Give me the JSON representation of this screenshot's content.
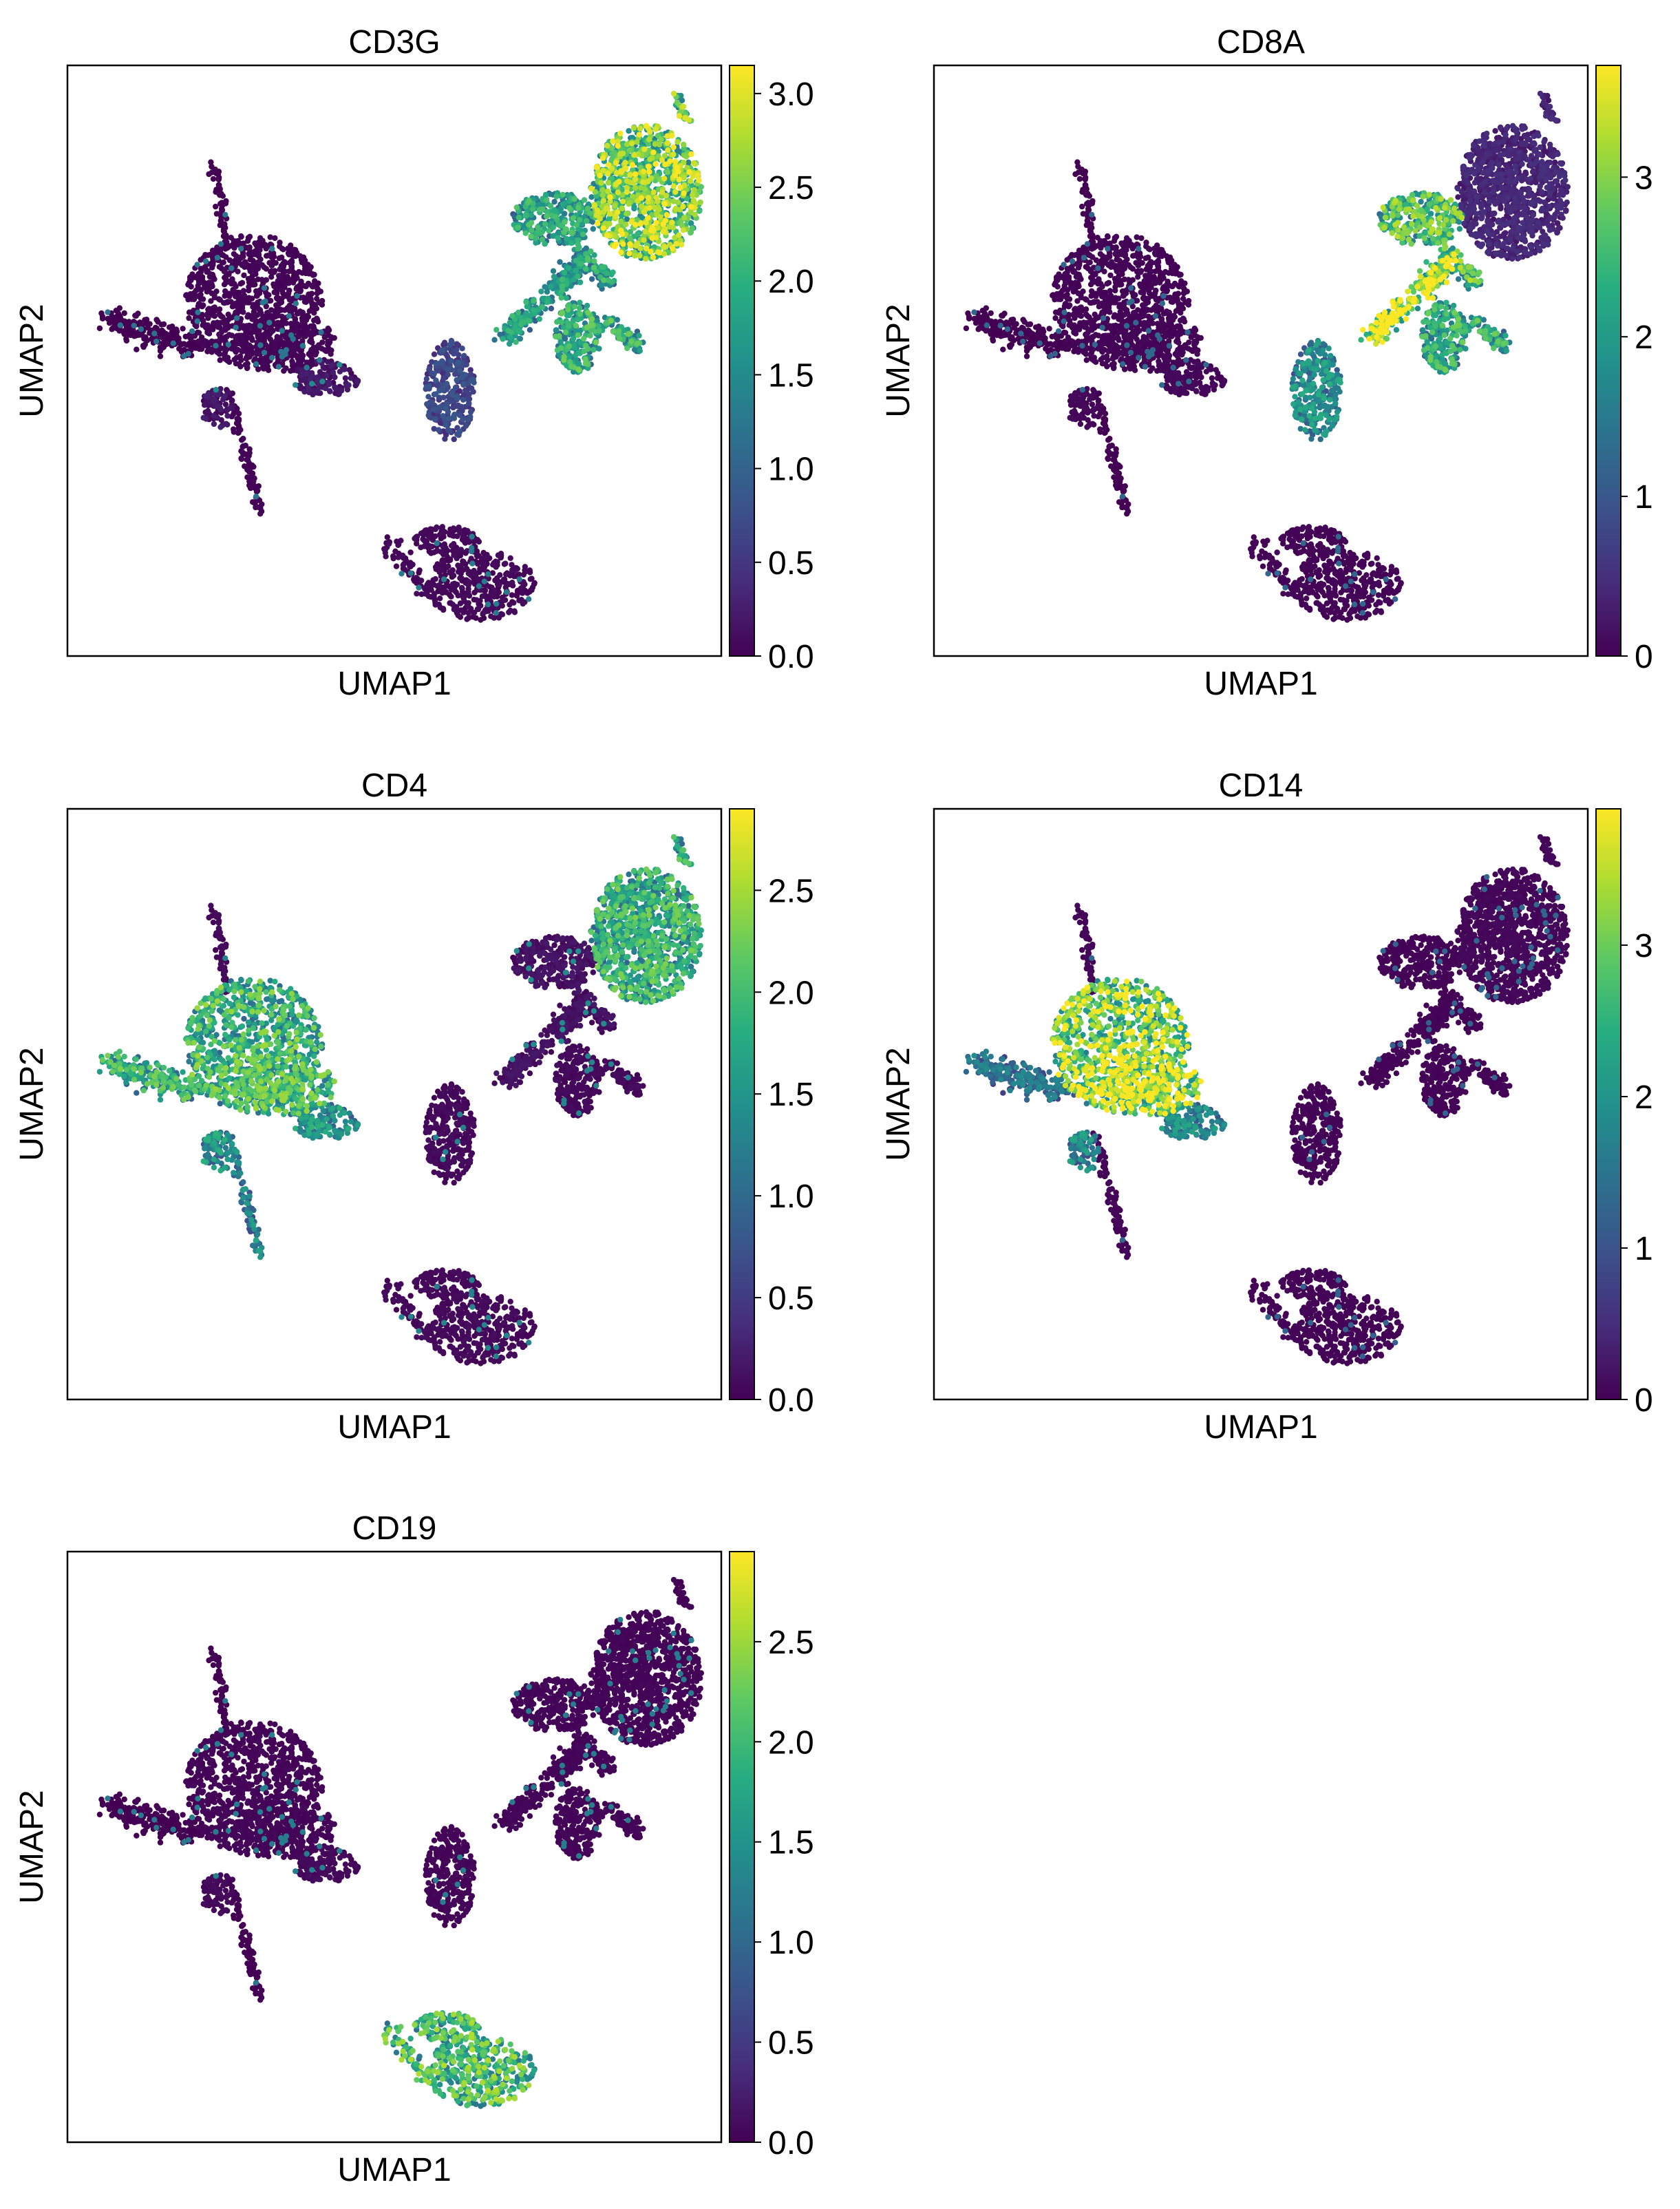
{
  "colormap": {
    "name": "viridis",
    "stops": [
      "#440154",
      "#472d7b",
      "#3b528b",
      "#2c728e",
      "#21918c",
      "#28ae80",
      "#5ec962",
      "#addc30",
      "#fde725"
    ]
  },
  "chart_data": [
    {
      "type": "scatter",
      "title": "CD3G",
      "xlabel": "UMAP1",
      "ylabel": "UMAP2",
      "colorbar": {
        "min": 0.0,
        "max": 3.15,
        "ticks": [
          0.0,
          0.5,
          1.0,
          1.5,
          2.0,
          2.5,
          3.0
        ],
        "tick_labels": [
          "0.0",
          "0.5",
          "1.0",
          "1.5",
          "2.0",
          "2.5",
          "3.0"
        ]
      },
      "cluster_expression": {
        "monocyte_blob": 0.05,
        "monocyte_tail": 0.3,
        "left_arm": 0.0,
        "top_spike": 0.0,
        "bottom_tail": 0.05,
        "t_cell_top": 2.2,
        "t_cell_mid": 1.6,
        "nk_small": 0.6,
        "t_cell_stalk": 1.5,
        "b_cell": 0.1,
        "lower_mid": 1.7
      }
    },
    {
      "type": "scatter",
      "title": "CD8A",
      "xlabel": "UMAP1",
      "ylabel": "UMAP2",
      "colorbar": {
        "min": 0,
        "max": 3.7,
        "ticks": [
          0,
          1,
          2,
          3
        ],
        "tick_labels": [
          "0",
          "1",
          "2",
          "3"
        ]
      },
      "cluster_expression": {
        "monocyte_blob": 0.05,
        "monocyte_tail": 0.1,
        "left_arm": 0.0,
        "top_spike": 0.0,
        "bottom_tail": 0.0,
        "t_cell_top": 0.35,
        "t_cell_mid": 2.3,
        "nk_small": 1.6,
        "t_cell_stalk": 3.0,
        "b_cell": 0.05,
        "lower_mid": 2.0
      }
    },
    {
      "type": "scatter",
      "title": "CD4",
      "xlabel": "UMAP1",
      "ylabel": "UMAP2",
      "colorbar": {
        "min": 0.0,
        "max": 2.9,
        "ticks": [
          0.0,
          0.5,
          1.0,
          1.5,
          2.0,
          2.5
        ],
        "tick_labels": [
          "0.0",
          "0.5",
          "1.0",
          "1.5",
          "2.0",
          "2.5"
        ]
      },
      "cluster_expression": {
        "monocyte_blob": 1.7,
        "monocyte_tail": 1.3,
        "left_arm": 1.6,
        "top_spike": 0.1,
        "bottom_tail": 1.2,
        "t_cell_top": 1.6,
        "t_cell_mid": 0.2,
        "nk_small": 0.1,
        "t_cell_stalk": 0.2,
        "b_cell": 0.1,
        "lower_mid": 0.1
      }
    },
    {
      "type": "scatter",
      "title": "CD14",
      "xlabel": "UMAP1",
      "ylabel": "UMAP2",
      "colorbar": {
        "min": 0,
        "max": 3.9,
        "ticks": [
          0,
          1,
          2,
          3
        ],
        "tick_labels": [
          "0",
          "1",
          "2",
          "3"
        ]
      },
      "cluster_expression": {
        "monocyte_blob": 2.9,
        "monocyte_tail": 1.6,
        "left_arm": 1.3,
        "top_spike": 0.1,
        "bottom_tail": 0.1,
        "t_cell_top": 0.1,
        "t_cell_mid": 0.05,
        "nk_small": 0.05,
        "t_cell_stalk": 0.05,
        "b_cell": 0.05,
        "lower_mid": 0.05
      }
    },
    {
      "type": "scatter",
      "title": "CD19",
      "xlabel": "UMAP1",
      "ylabel": "UMAP2",
      "colorbar": {
        "min": 0.0,
        "max": 2.95,
        "ticks": [
          0.0,
          0.5,
          1.0,
          1.5,
          2.0,
          2.5
        ],
        "tick_labels": [
          "0.0",
          "0.5",
          "1.0",
          "1.5",
          "2.0",
          "2.5"
        ]
      },
      "cluster_expression": {
        "monocyte_blob": 0.05,
        "monocyte_tail": 0.1,
        "left_arm": 0.0,
        "top_spike": 0.0,
        "bottom_tail": 0.0,
        "t_cell_top": 0.05,
        "t_cell_mid": 0.05,
        "nk_small": 0.05,
        "t_cell_stalk": 0.05,
        "b_cell": 1.8,
        "lower_mid": 0.05
      }
    }
  ]
}
